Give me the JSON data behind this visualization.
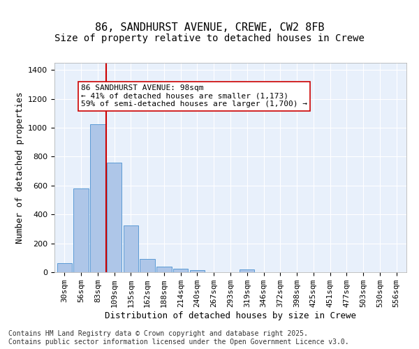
{
  "title1": "86, SANDHURST AVENUE, CREWE, CW2 8FB",
  "title2": "Size of property relative to detached houses in Crewe",
  "xlabel": "Distribution of detached houses by size in Crewe",
  "ylabel": "Number of detached properties",
  "categories": [
    "30sqm",
    "56sqm",
    "83sqm",
    "109sqm",
    "135sqm",
    "162sqm",
    "188sqm",
    "214sqm",
    "240sqm",
    "267sqm",
    "293sqm",
    "319sqm",
    "346sqm",
    "372sqm",
    "398sqm",
    "425sqm",
    "451sqm",
    "477sqm",
    "503sqm",
    "530sqm",
    "556sqm"
  ],
  "values": [
    65,
    580,
    1025,
    760,
    325,
    90,
    40,
    25,
    15,
    0,
    0,
    20,
    0,
    0,
    0,
    0,
    0,
    0,
    0,
    0,
    0
  ],
  "bar_color": "#aec6e8",
  "bar_edge_color": "#5b9bd5",
  "vline_x": 3,
  "vline_color": "#cc0000",
  "annotation_text": "86 SANDHURST AVENUE: 98sqm\n← 41% of detached houses are smaller (1,173)\n59% of semi-detached houses are larger (1,700) →",
  "annotation_box_color": "#ffffff",
  "annotation_box_edge_color": "#cc0000",
  "ylim": [
    0,
    1450
  ],
  "bg_color": "#e8f0fb",
  "grid_color": "#ffffff",
  "footer": "Contains HM Land Registry data © Crown copyright and database right 2025.\nContains public sector information licensed under the Open Government Licence v3.0.",
  "title_fontsize": 11,
  "subtitle_fontsize": 10,
  "axis_label_fontsize": 9,
  "tick_fontsize": 8,
  "annotation_fontsize": 8,
  "footer_fontsize": 7
}
